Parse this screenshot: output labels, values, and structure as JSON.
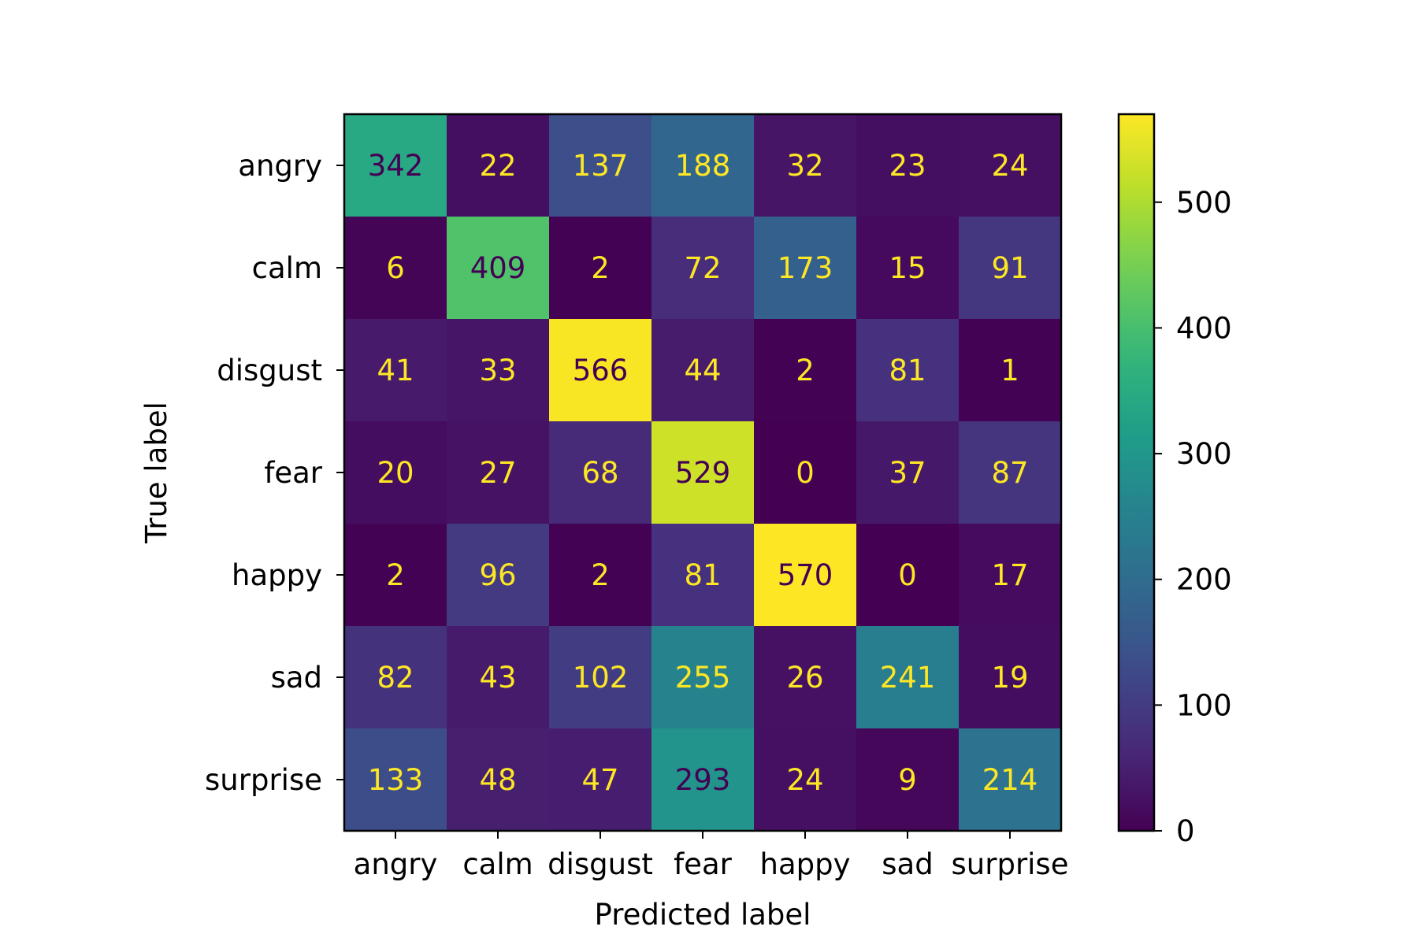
{
  "chart_data": {
    "type": "heatmap",
    "title": "",
    "xlabel": "Predicted label",
    "ylabel": "True label",
    "x_categories": [
      "angry",
      "calm",
      "disgust",
      "fear",
      "happy",
      "sad",
      "surprise"
    ],
    "y_categories": [
      "angry",
      "calm",
      "disgust",
      "fear",
      "happy",
      "sad",
      "surprise"
    ],
    "values": [
      [
        342,
        22,
        137,
        188,
        32,
        23,
        24
      ],
      [
        6,
        409,
        2,
        72,
        173,
        15,
        91
      ],
      [
        41,
        33,
        566,
        44,
        2,
        81,
        1
      ],
      [
        20,
        27,
        68,
        529,
        0,
        37,
        87
      ],
      [
        2,
        96,
        2,
        81,
        570,
        0,
        17
      ],
      [
        82,
        43,
        102,
        255,
        26,
        241,
        19
      ],
      [
        133,
        48,
        47,
        293,
        24,
        9,
        214
      ]
    ],
    "colormap": "viridis",
    "vmin": 0,
    "vmax": 570,
    "colorbar_ticks": [
      0,
      100,
      200,
      300,
      400,
      500
    ],
    "text_color_dark": "#440154",
    "text_color_light": "#fde725",
    "grid": false
  }
}
